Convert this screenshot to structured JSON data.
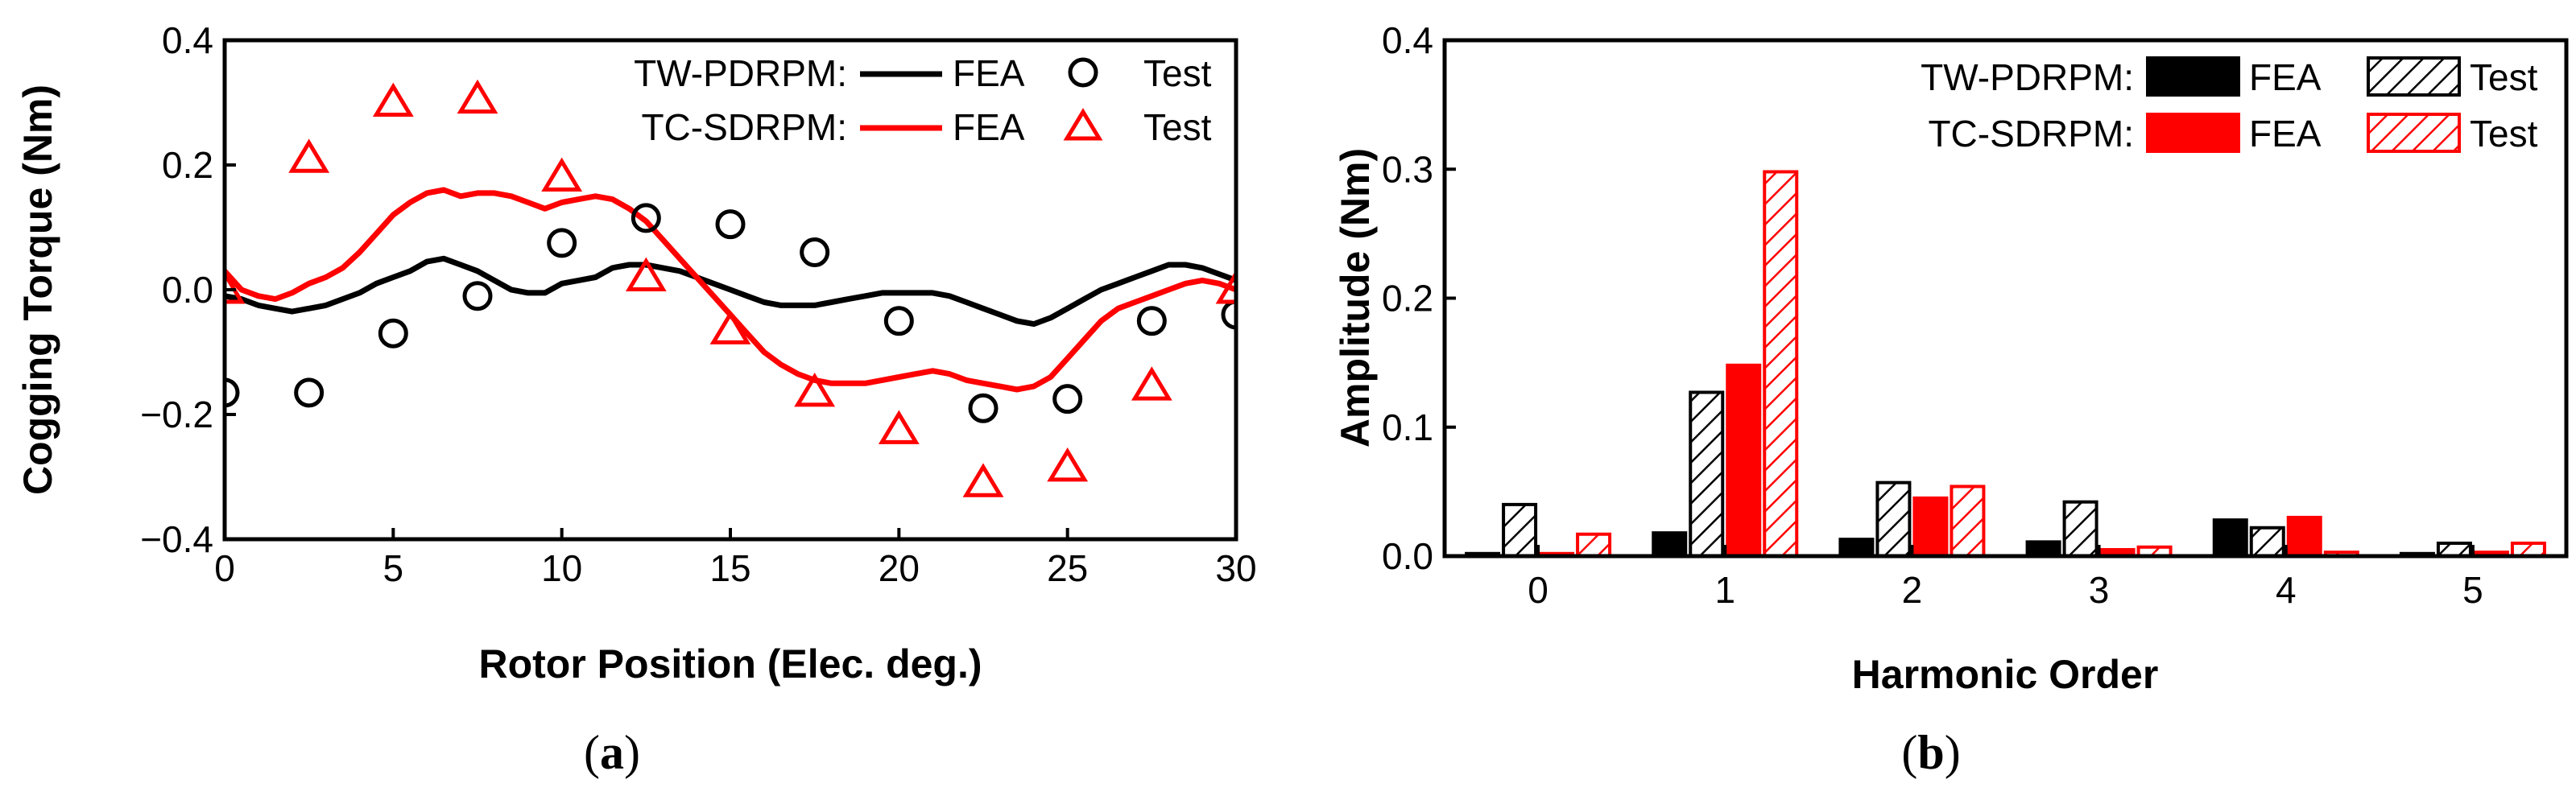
{
  "chart_data": [
    {
      "type": "line",
      "panel_label": "a",
      "xlabel": "Rotor Position (Elec. deg.)",
      "ylabel": "Cogging Torque (Nm)",
      "xlim": [
        0,
        30
      ],
      "ylim": [
        -0.4,
        0.4
      ],
      "xticks": [
        "0",
        "5",
        "10",
        "15",
        "20",
        "25",
        "30"
      ],
      "yticks": [
        "−0.4",
        "−0.2",
        "0.0",
        "0.2",
        "0.4"
      ],
      "legend": {
        "rows": [
          {
            "group": "TW-PDRPM:",
            "fea_label": "FEA",
            "test_label": "Test"
          },
          {
            "group": "TC-SDRPM:",
            "fea_label": "FEA",
            "test_label": "Test"
          }
        ]
      },
      "series": [
        {
          "name": "TW-PDRPM FEA",
          "style": "line",
          "color": "#000000",
          "x": [
            0,
            0.5,
            1,
            1.5,
            2,
            2.5,
            3,
            3.5,
            4,
            4.5,
            5,
            5.5,
            6,
            6.5,
            7,
            7.5,
            8,
            8.5,
            9,
            9.5,
            10,
            10.5,
            11,
            11.5,
            12,
            12.5,
            13,
            13.5,
            14,
            14.5,
            15,
            15.5,
            16,
            16.5,
            17,
            17.5,
            18,
            18.5,
            19,
            19.5,
            20,
            20.5,
            21,
            21.5,
            22,
            22.5,
            23,
            23.5,
            24,
            24.5,
            25,
            25.5,
            26,
            26.5,
            27,
            27.5,
            28,
            28.5,
            29,
            29.5,
            30
          ],
          "y": [
            -0.01,
            -0.015,
            -0.025,
            -0.03,
            -0.035,
            -0.03,
            -0.025,
            -0.015,
            -0.005,
            0.01,
            0.02,
            0.03,
            0.045,
            0.05,
            0.04,
            0.03,
            0.015,
            0.0,
            -0.005,
            -0.005,
            0.01,
            0.015,
            0.02,
            0.035,
            0.04,
            0.04,
            0.035,
            0.03,
            0.02,
            0.01,
            0.0,
            -0.01,
            -0.02,
            -0.025,
            -0.025,
            -0.025,
            -0.02,
            -0.015,
            -0.01,
            -0.005,
            -0.005,
            -0.005,
            -0.005,
            -0.01,
            -0.02,
            -0.03,
            -0.04,
            -0.05,
            -0.055,
            -0.045,
            -0.03,
            -0.015,
            0.0,
            0.01,
            0.02,
            0.03,
            0.04,
            0.04,
            0.035,
            0.025,
            0.015
          ]
        },
        {
          "name": "TC-SDRPM FEA",
          "style": "line",
          "color": "#ff0000",
          "x": [
            0,
            0.5,
            1,
            1.5,
            2,
            2.5,
            3,
            3.5,
            4,
            4.5,
            5,
            5.5,
            6,
            6.5,
            7,
            7.5,
            8,
            8.5,
            9,
            9.5,
            10,
            10.5,
            11,
            11.5,
            12,
            12.5,
            13,
            13.5,
            14,
            14.5,
            15,
            15.5,
            16,
            16.5,
            17,
            17.5,
            18,
            18.5,
            19,
            19.5,
            20,
            20.5,
            21,
            21.5,
            22,
            22.5,
            23,
            23.5,
            24,
            24.5,
            25,
            25.5,
            26,
            26.5,
            27,
            27.5,
            28,
            28.5,
            29,
            29.5,
            30
          ],
          "y": [
            0.03,
            0.0,
            -0.01,
            -0.015,
            -0.005,
            0.01,
            0.02,
            0.035,
            0.06,
            0.09,
            0.12,
            0.14,
            0.155,
            0.16,
            0.15,
            0.155,
            0.155,
            0.15,
            0.14,
            0.13,
            0.14,
            0.145,
            0.15,
            0.145,
            0.13,
            0.11,
            0.08,
            0.05,
            0.02,
            -0.01,
            -0.04,
            -0.07,
            -0.1,
            -0.12,
            -0.135,
            -0.145,
            -0.15,
            -0.15,
            -0.15,
            -0.145,
            -0.14,
            -0.135,
            -0.13,
            -0.135,
            -0.145,
            -0.15,
            -0.155,
            -0.16,
            -0.155,
            -0.14,
            -0.11,
            -0.08,
            -0.05,
            -0.03,
            -0.02,
            -0.01,
            0.0,
            0.01,
            0.015,
            0.01,
            0.0
          ]
        },
        {
          "name": "TW-PDRPM Test",
          "style": "marker-circle",
          "color": "#000000",
          "x": [
            0,
            2.5,
            5,
            7.5,
            10,
            12.5,
            15,
            17.5,
            20,
            22.5,
            25,
            27.5,
            30
          ],
          "y": [
            -0.165,
            -0.165,
            -0.07,
            -0.01,
            0.075,
            0.115,
            0.105,
            0.06,
            -0.05,
            -0.19,
            -0.175,
            -0.05,
            -0.04
          ]
        },
        {
          "name": "TC-SDRPM Test",
          "style": "marker-triangle",
          "color": "#ff0000",
          "x": [
            0,
            2.5,
            5,
            7.5,
            10,
            12.5,
            15,
            17.5,
            20,
            22.5,
            25,
            27.5,
            30
          ],
          "y": [
            0.0,
            0.21,
            0.3,
            0.305,
            0.18,
            0.02,
            -0.065,
            -0.165,
            -0.225,
            -0.31,
            -0.285,
            -0.155,
            0.0
          ]
        }
      ]
    },
    {
      "type": "bar",
      "panel_label": "b",
      "xlabel": "Harmonic Order",
      "ylabel": "Amplitude (Nm)",
      "categories": [
        "0",
        "1",
        "2",
        "3",
        "4",
        "5"
      ],
      "ylim": [
        0,
        0.4
      ],
      "yticks": [
        "0.0",
        "0.1",
        "0.2",
        "0.3",
        "0.4"
      ],
      "legend": {
        "rows": [
          {
            "group": "TW-PDRPM:",
            "fea_label": "FEA",
            "test_label": "Test"
          },
          {
            "group": "TC-SDRPM:",
            "fea_label": "FEA",
            "test_label": "Test"
          }
        ]
      },
      "series": [
        {
          "name": "TW-PDRPM FEA",
          "style": "solid",
          "color": "#000000",
          "values": [
            0.002,
            0.018,
            0.013,
            0.011,
            0.028,
            0.002
          ]
        },
        {
          "name": "TW-PDRPM Test",
          "style": "hatched",
          "color": "#000000",
          "values": [
            0.04,
            0.127,
            0.057,
            0.042,
            0.022,
            0.01
          ]
        },
        {
          "name": "TC-SDRPM FEA",
          "style": "solid",
          "color": "#ff0000",
          "values": [
            0.002,
            0.148,
            0.045,
            0.005,
            0.03,
            0.003
          ]
        },
        {
          "name": "TC-SDRPM Test",
          "style": "hatched",
          "color": "#ff0000",
          "values": [
            0.017,
            0.298,
            0.054,
            0.007,
            0.003,
            0.01
          ]
        }
      ]
    }
  ]
}
